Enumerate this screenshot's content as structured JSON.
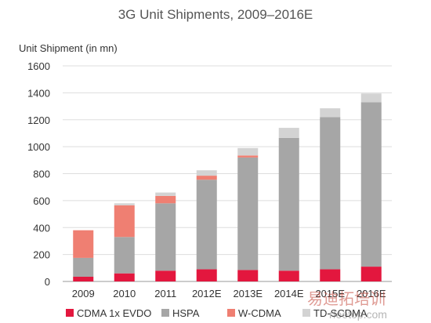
{
  "chart_data": {
    "type": "bar",
    "stacked": true,
    "title": "3G Unit Shipments, 2009–2016E",
    "ylabel": "Unit Shipment (in mn)",
    "xlabel": "",
    "ylim": [
      0,
      1600
    ],
    "yticks": [
      0,
      200,
      400,
      600,
      800,
      1000,
      1200,
      1400,
      1600
    ],
    "grid": true,
    "legend_position": "bottom",
    "categories": [
      "2009",
      "2010",
      "2011",
      "2012E",
      "2013E",
      "2014E",
      "2015E",
      "2016E"
    ],
    "series": [
      {
        "name": "CDMA 1x EVDO",
        "color": "#e3173e",
        "values": [
          35,
          60,
          80,
          90,
          85,
          80,
          90,
          110
        ]
      },
      {
        "name": "HSPA",
        "color": "#a6a6a6",
        "values": [
          140,
          270,
          500,
          665,
          835,
          985,
          1130,
          1220
        ]
      },
      {
        "name": "W-CDMA",
        "color": "#ef7f72",
        "values": [
          205,
          235,
          55,
          30,
          15,
          0,
          0,
          0
        ]
      },
      {
        "name": "TD-SCDMA",
        "color": "#d3d3d3",
        "values": [
          0,
          15,
          25,
          40,
          55,
          75,
          65,
          65
        ]
      }
    ]
  },
  "watermark": {
    "brand_cn": "易迪拓培训",
    "url": "rfeetop.com"
  }
}
